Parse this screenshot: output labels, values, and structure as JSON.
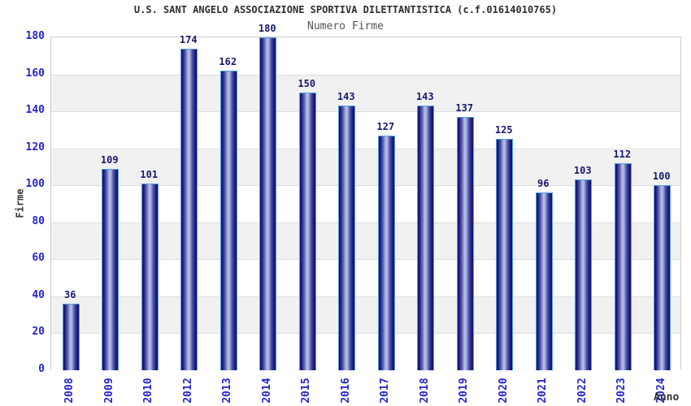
{
  "chart_data": {
    "type": "bar",
    "title": "U.S. SANT ANGELO ASSOCIAZIONE SPORTIVA DILETTANTISTICA (c.f.01614010765)",
    "subtitle": "Numero Firme",
    "xlabel": "Anno",
    "ylabel": "Firme",
    "categories": [
      "2008",
      "2009",
      "2010",
      "2012",
      "2013",
      "2014",
      "2015",
      "2016",
      "2017",
      "2018",
      "2019",
      "2020",
      "2021",
      "2022",
      "2023",
      "2024"
    ],
    "values": [
      36,
      109,
      101,
      174,
      162,
      180,
      150,
      143,
      127,
      143,
      137,
      125,
      96,
      103,
      112,
      100
    ],
    "ylim": [
      0,
      180
    ],
    "ytick_step": 20,
    "yticks": [
      0,
      20,
      40,
      60,
      80,
      100,
      120,
      140,
      160,
      180
    ],
    "grid": true,
    "legend": "none",
    "colors": {
      "bar_dark": "#10106a",
      "bar_light": "#b8c0ea",
      "bar_border": "#58a0e0",
      "axis_tick_label": "#2525cd",
      "value_label": "#191970",
      "title_text": "#2e2e2e",
      "subtitle_text": "#555555",
      "band_alt": "#f1f1f1",
      "gridline": "#dedede",
      "plot_border": "#cccccc"
    }
  }
}
